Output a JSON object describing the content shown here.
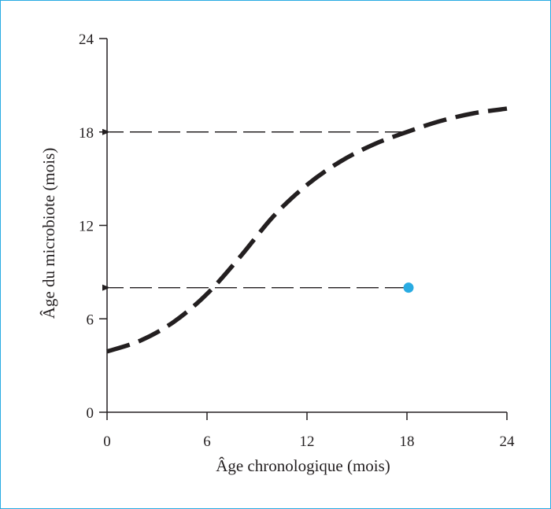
{
  "chart_data": {
    "type": "line",
    "xlabel": "Âge chronologique (mois)",
    "ylabel": "Âge du microbiote (mois)",
    "xlim": [
      0,
      24
    ],
    "ylim": [
      0,
      24
    ],
    "x_ticks": [
      0,
      6,
      12,
      18,
      24
    ],
    "y_ticks": [
      0,
      6,
      12,
      18,
      24
    ],
    "x_tick_labels": [
      "0",
      "6",
      "12",
      "18",
      "24"
    ],
    "y_tick_labels": [
      "0",
      "6",
      "12",
      "18",
      "24"
    ],
    "grid": false,
    "series": [
      {
        "style": "dashed",
        "color": "#231f20",
        "x": [
          0,
          2,
          4,
          6,
          8,
          10,
          12,
          14,
          16,
          18,
          20,
          22,
          24
        ],
        "y": [
          3.9,
          4.6,
          5.8,
          7.6,
          10.0,
          12.6,
          14.6,
          16.1,
          17.2,
          18.0,
          18.7,
          19.2,
          19.5
        ]
      }
    ],
    "points": [
      {
        "x": 18,
        "y": 8,
        "color": "#29abe2"
      }
    ],
    "reference_arrows": [
      {
        "from": [
          18,
          8
        ],
        "to": [
          0,
          8
        ]
      },
      {
        "from": [
          18,
          18
        ],
        "to": [
          0,
          18
        ]
      }
    ]
  }
}
